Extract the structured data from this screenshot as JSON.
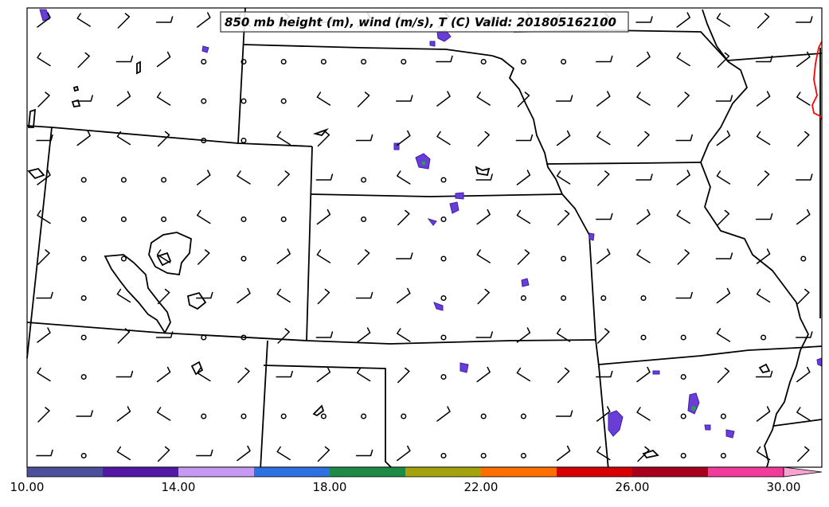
{
  "map": {
    "title": "850 mb height (m), wind (m/s), T (C) Valid: 201805162100",
    "colors": {
      "frame": "#000000",
      "border": "#000000",
      "lake": "#000000",
      "temp_contour": "#ff0000",
      "cell_outline": "#3b1fb0",
      "cell_fill": "#6a3ed6",
      "cell_core": "#2f9a4a"
    },
    "colorbar": {
      "labels": [
        "10.00",
        "14.00",
        "18.00",
        "22.00",
        "26.00",
        "30.00"
      ],
      "colors": [
        "#4e4f9c",
        "#5418a6",
        "#c69af2",
        "#2d72e0",
        "#1d8a45",
        "#a6a20e",
        "#ff6f00",
        "#d60000",
        "#a6001c",
        "#f23c9c"
      ],
      "extend_color": "#f7a3d2"
    }
  }
}
